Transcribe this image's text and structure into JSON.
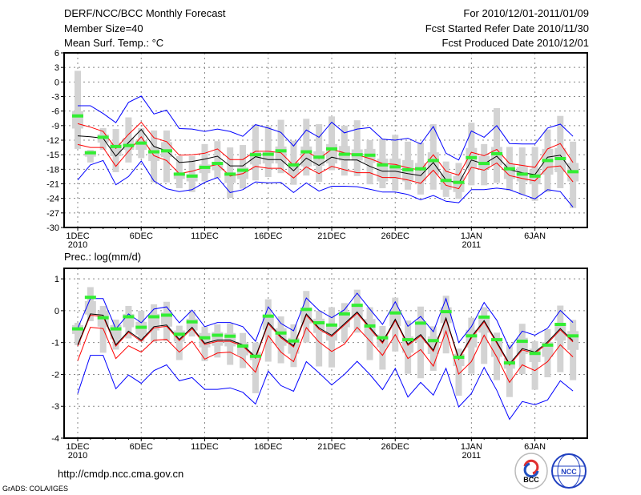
{
  "header": {
    "title": "DERF/NCC/BCC Monthly Forecast",
    "member_size": "Member Size=40",
    "variable": "Mean Surf. Temp.: °C",
    "period": "For 2010/12/01-2011/01/09",
    "started": "Fcst Started Refer Date 2010/11/30",
    "produced": "Fcst Produced Date 2010/12/01"
  },
  "footer": {
    "url": "http://cmdp.ncc.cma.gov.cn",
    "credit": "GrADS: COLA/IGES",
    "logo_bcc": "BCC",
    "logo_ncc": "NCC"
  },
  "colors": {
    "ensemble_spread": "#0000ff",
    "stddev": "#ff0000",
    "mean": "#000000",
    "observed": "#33ee33",
    "box": "#d3d3d3",
    "grid": "#888888"
  },
  "chart_data": [
    {
      "type": "box+line",
      "title": "Mean Surf. Temp.: °C",
      "ylabel": "°C",
      "ylim": [
        -30,
        6
      ],
      "yticks": [
        6,
        3,
        0,
        -3,
        -6,
        -9,
        -12,
        -15,
        -18,
        -21,
        -24,
        -27,
        -30
      ],
      "xticks": [
        {
          "day": 1,
          "label": "1DEC",
          "sub": "2010"
        },
        {
          "day": 6,
          "label": "6DEC"
        },
        {
          "day": 11,
          "label": "11DEC"
        },
        {
          "day": 16,
          "label": "16DEC"
        },
        {
          "day": 21,
          "label": "21DEC"
        },
        {
          "day": 26,
          "label": "26DEC"
        },
        {
          "day": 32,
          "label": "1JAN",
          "sub": "2011"
        },
        {
          "day": 37,
          "label": "6JAN"
        }
      ],
      "grid": true,
      "days": 40,
      "mean": [
        -11.1,
        -11.3,
        -11.6,
        -15.3,
        -12.5,
        -9.8,
        -13.3,
        -14.2,
        -16.6,
        -16.4,
        -15.9,
        -15.3,
        -17.3,
        -17.3,
        -15.4,
        -16,
        -16,
        -18.3,
        -15.7,
        -17.2,
        -15.5,
        -16.1,
        -16.1,
        -17.4,
        -18.4,
        -18.4,
        -18.9,
        -19.3,
        -16.6,
        -20.2,
        -20.9,
        -16.1,
        -16.9,
        -15.3,
        -18.1,
        -18.7,
        -19.1,
        -15.5,
        -15.1,
        -18.7
      ],
      "red_upper": [
        -8.6,
        -9.3,
        -10.2,
        -13.7,
        -10.8,
        -8.3,
        -11.5,
        -12.3,
        -15.1,
        -15,
        -14.7,
        -13.8,
        -16,
        -16,
        -14.3,
        -14.3,
        -14.6,
        -17.2,
        -14.3,
        -15.8,
        -13.9,
        -14.6,
        -15,
        -15.8,
        -16.8,
        -17,
        -17.7,
        -18.2,
        -15,
        -18.4,
        -19.2,
        -14.5,
        -15.2,
        -13.9,
        -16.8,
        -17.2,
        -17.6,
        -13.8,
        -12.7,
        -16.6
      ],
      "red_lower": [
        -12.9,
        -13.5,
        -13.5,
        -17.4,
        -14.3,
        -11.3,
        -15.2,
        -16.2,
        -18.9,
        -18.4,
        -17.6,
        -17,
        -19.4,
        -18.9,
        -17.4,
        -17.8,
        -17.8,
        -19.8,
        -17.5,
        -18.9,
        -17.4,
        -18.1,
        -18.7,
        -18.7,
        -19.7,
        -19.7,
        -20.2,
        -20.9,
        -18.2,
        -21.3,
        -22,
        -17.6,
        -18.2,
        -16.7,
        -19.3,
        -19.9,
        -20.4,
        -17.6,
        -17.3,
        -20.6
      ],
      "blue_upper": [
        -4.9,
        -4.9,
        -6.5,
        -8.4,
        -4.2,
        -2.9,
        -6.6,
        -5.8,
        -9.6,
        -9.7,
        -10.2,
        -9.7,
        -10.2,
        -11.2,
        -8.8,
        -9.5,
        -10.4,
        -13.2,
        -9.9,
        -11.4,
        -8.3,
        -10.5,
        -9.7,
        -9.4,
        -11.8,
        -12,
        -11.6,
        -12.8,
        -9.2,
        -14.7,
        -16.1,
        -10.1,
        -11.4,
        -9,
        -12.7,
        -12.8,
        -12.8,
        -9.5,
        -8.7,
        -11.2
      ],
      "blue_lower": [
        -20.2,
        -17.1,
        -16.2,
        -21.2,
        -19.5,
        -16.3,
        -20.4,
        -22,
        -22.6,
        -22.2,
        -20.7,
        -19.7,
        -22.8,
        -22.2,
        -20.6,
        -20.8,
        -20.7,
        -22.8,
        -20.8,
        -22.5,
        -21.5,
        -21.5,
        -21.6,
        -22.1,
        -22.7,
        -22.7,
        -23.2,
        -24.3,
        -23.4,
        -24.6,
        -24.9,
        -22.2,
        -22.2,
        -21.9,
        -22.2,
        -23.2,
        -24.1,
        -22.2,
        -22.6,
        -25.8
      ],
      "whisker_low": [
        -13.8,
        -16.6,
        -14,
        -18.6,
        -16.6,
        -15.7,
        -20.7,
        -20.7,
        -21.9,
        -22.7,
        -20.5,
        -19.8,
        -23.9,
        -22,
        -20.3,
        -19.6,
        -18.8,
        -21.2,
        -19.3,
        -20.6,
        -18.2,
        -19.3,
        -19.4,
        -21.1,
        -21.9,
        -22.4,
        -22.2,
        -23.2,
        -22.2,
        -23.7,
        -24.1,
        -21.3,
        -21.3,
        -20.8,
        -22.4,
        -23.3,
        -24.5,
        -22.7,
        -21.9,
        -26
      ],
      "whisker_high": [
        2.3,
        -14,
        -9.5,
        -9.7,
        -7.3,
        -9.5,
        -10,
        -10,
        -15.3,
        -15.3,
        -12.8,
        -12.2,
        -13.5,
        -13,
        -8.8,
        -9.2,
        -7.8,
        -12.1,
        -7.6,
        -8.7,
        -7.1,
        -9,
        -7.9,
        -12,
        -11.7,
        -10.9,
        -12.3,
        -12.5,
        -8.7,
        -16.4,
        -16.7,
        -8.4,
        -12.8,
        -5.4,
        -13.4,
        -13.5,
        -13.4,
        -9.8,
        -7,
        -12.3
      ],
      "box_low": [
        -9.6,
        -15.4,
        -12.5,
        -15.3,
        -14,
        -14,
        -16.3,
        -15.5,
        -20,
        -20.5,
        -18.8,
        -18.2,
        -20.8,
        -20,
        -17,
        -16.8,
        -16.8,
        -19,
        -17.4,
        -17.3,
        -16.8,
        -16.2,
        -16.2,
        -16.7,
        -20.5,
        -20,
        -20.5,
        -20.5,
        -19.1,
        -22.2,
        -22.7,
        -17.8,
        -18,
        -17.2,
        -20,
        -20.5,
        -21.1,
        -19.1,
        -18.6,
        -20.5
      ],
      "box_high": [
        -6,
        -14.2,
        -10.8,
        -12.5,
        -11.5,
        -12,
        -13.5,
        -12.4,
        -18.7,
        -19,
        -17,
        -16.5,
        -18.8,
        -17.6,
        -14.5,
        -14.5,
        -13.3,
        -16.5,
        -13.3,
        -14.3,
        -12.8,
        -13.2,
        -13.9,
        -13.8,
        -15.8,
        -15.8,
        -16.1,
        -16.7,
        -14.5,
        -18.9,
        -19.4,
        -13.6,
        -15.3,
        -13.4,
        -16.9,
        -17.5,
        -18,
        -13.8,
        -13.6,
        -16.7
      ],
      "observed": [
        -7,
        -14.6,
        -11.4,
        -13.3,
        -13.1,
        -12.6,
        -14.4,
        -14.2,
        -19,
        -19.4,
        -17.6,
        -16.8,
        -19,
        -18.2,
        -15,
        -14.9,
        -14.2,
        -17.1,
        -14.4,
        -15.5,
        -13.8,
        -14.9,
        -15,
        -15.1,
        -17.1,
        -17.5,
        -18.1,
        -17.9,
        -16.2,
        -20.3,
        -20.7,
        -15.6,
        -16.8,
        -14.8,
        -17.9,
        -19,
        -19.4,
        -16.2,
        -15.8,
        -18.5
      ]
    },
    {
      "type": "box+line",
      "title": "Prec.: log(mm/d)",
      "ylabel": "log(mm/d)",
      "ylim": [
        -4,
        1.33
      ],
      "yticks": [
        1,
        0,
        -1,
        -2,
        -3,
        -4
      ],
      "xticks": [
        {
          "day": 1,
          "label": "1DEC",
          "sub": "2010"
        },
        {
          "day": 6,
          "label": "6DEC"
        },
        {
          "day": 11,
          "label": "11DEC"
        },
        {
          "day": 16,
          "label": "16DEC"
        },
        {
          "day": 21,
          "label": "21DEC"
        },
        {
          "day": 26,
          "label": "26DEC"
        },
        {
          "day": 32,
          "label": "1JAN",
          "sub": "2011"
        },
        {
          "day": 37,
          "label": "6JAN"
        }
      ],
      "grid": true,
      "days": 40,
      "mean": [
        -1.07,
        -0.1,
        -0.14,
        -1.07,
        -0.64,
        -0.92,
        -0.5,
        -0.45,
        -0.9,
        -0.52,
        -1.02,
        -0.92,
        -0.92,
        -1.07,
        -1.45,
        -0.37,
        -0.81,
        -1.1,
        -0.1,
        -0.54,
        -0.77,
        -0.41,
        -0.04,
        -0.52,
        -0.98,
        -0.27,
        -1.05,
        -0.75,
        -1.24,
        -0.23,
        -1.49,
        -0.82,
        -0.31,
        -0.98,
        -1.67,
        -1.19,
        -1.3,
        -0.98,
        -0.56,
        -0.94
      ],
      "red_upper": [
        -1.11,
        -0.14,
        -0.18,
        -1.11,
        -0.68,
        -0.96,
        -0.54,
        -0.49,
        -0.94,
        -0.56,
        -1.06,
        -0.96,
        -0.96,
        -1.11,
        -1.49,
        -0.41,
        -0.85,
        -1.14,
        -0.14,
        -0.58,
        -0.81,
        -0.45,
        -0.08,
        -0.56,
        -1.02,
        -0.31,
        -1.09,
        -0.79,
        -1.28,
        -0.27,
        -1.53,
        -0.86,
        -0.35,
        -1.02,
        -1.71,
        -1.23,
        -1.34,
        -1.02,
        -0.6,
        -0.98
      ],
      "red_lower": [
        -1.57,
        -0.52,
        -0.56,
        -1.5,
        -1.1,
        -1.3,
        -0.93,
        -0.9,
        -1.3,
        -0.96,
        -1.52,
        -1.33,
        -1.3,
        -1.5,
        -1.93,
        -0.78,
        -1.3,
        -1.6,
        -0.53,
        -0.98,
        -1.28,
        -1.05,
        -0.52,
        -0.95,
        -1.4,
        -0.75,
        -1.5,
        -1.22,
        -1.74,
        -0.64,
        -1.99,
        -1.6,
        -0.77,
        -1.45,
        -2.25,
        -1.7,
        -1.88,
        -1.6,
        -1.07,
        -1.45
      ],
      "blue_upper": [
        -0.55,
        0.38,
        0.38,
        -0.57,
        -0.1,
        -0.38,
        0.05,
        0.12,
        -0.38,
        0.02,
        -0.5,
        -0.37,
        -0.37,
        -0.5,
        -0.96,
        0.12,
        -0.4,
        -0.63,
        0.4,
        0.01,
        -0.22,
        0.03,
        0.55,
        0.05,
        -0.43,
        0.28,
        -0.49,
        -0.18,
        -0.66,
        0.38,
        -1,
        -0.5,
        0.26,
        -0.3,
        -1.19,
        -0.64,
        -0.77,
        -0.55,
        0.01,
        -0.37
      ],
      "blue_lower": [
        -2.6,
        -1.4,
        -1.4,
        -2.45,
        -2.02,
        -2.28,
        -1.88,
        -1.7,
        -2.2,
        -2.1,
        -2.47,
        -2.47,
        -2.42,
        -2.56,
        -2.93,
        -1.9,
        -2.35,
        -2.53,
        -1.6,
        -1.95,
        -2.33,
        -2,
        -1.59,
        -2,
        -2.48,
        -1.81,
        -2.71,
        -2.25,
        -2.65,
        -1.81,
        -3.02,
        -2.6,
        -1.78,
        -2.5,
        -3.41,
        -2.85,
        -2.95,
        -2.8,
        -2.2,
        -2.52
      ],
      "whisker_low": [
        -1.08,
        -0.33,
        -1.32,
        -1.22,
        -0.87,
        -0.97,
        -0.98,
        -0.95,
        -1.55,
        -0.81,
        -1.58,
        -1.47,
        -1.7,
        -1.8,
        -2.59,
        -1.6,
        -1.65,
        -1.77,
        -1,
        -1.75,
        -1.78,
        -0.98,
        -0.69,
        -1.55,
        -1.85,
        -1.28,
        -1.98,
        -2.12,
        -1.89,
        -1.34,
        -2.67,
        -1.98,
        -1.67,
        -2.18,
        -2.71,
        -1.99,
        -2.48,
        -2.09,
        -1.93,
        -2.18
      ],
      "whisker_high": [
        -0.38,
        0.74,
        0.15,
        -0.28,
        0.15,
        0,
        0.2,
        0.28,
        -0.47,
        -0.03,
        -0.5,
        -0.43,
        -0.4,
        -0.7,
        -1,
        0.36,
        -0.18,
        -0.43,
        0.62,
        0,
        0.11,
        0.24,
        0.66,
        0.11,
        -0.48,
        0.41,
        -0.31,
        0.13,
        -0.49,
        0.47,
        -1.19,
        -0.22,
        0.11,
        -0.69,
        -1.07,
        -0.41,
        -0.96,
        -0.58,
        0.16,
        -0.29
      ],
      "box_low": [
        -0.73,
        -0.12,
        -0.5,
        -0.9,
        -0.52,
        -0.75,
        -0.62,
        -0.5,
        -0.97,
        -0.62,
        -1.15,
        -1.1,
        -1.12,
        -1.4,
        -1.55,
        -0.6,
        -1.1,
        -1.35,
        -0.4,
        -0.7,
        -0.94,
        -0.52,
        -0.22,
        -0.81,
        -1.15,
        -0.48,
        -1.32,
        -0.98,
        -1.36,
        -0.39,
        -1.74,
        -1.15,
        -0.69,
        -1.45,
        -1.82,
        -1.36,
        -1.61,
        -1.45,
        -0.94,
        -1.23
      ],
      "box_high": [
        -0.45,
        0.3,
        0,
        -0.45,
        -0.1,
        -0.35,
        -0.1,
        -0.05,
        -0.62,
        -0.25,
        -0.7,
        -0.67,
        -0.7,
        -1,
        -1.3,
        -0.15,
        -0.55,
        -0.85,
        0.1,
        -0.25,
        -0.43,
        -0.05,
        0.2,
        -0.26,
        -0.75,
        0.03,
        -0.81,
        -0.39,
        -0.81,
        0.11,
        -1.36,
        -0.6,
        -0.18,
        -0.85,
        -1.49,
        -0.85,
        -1.19,
        -0.98,
        -0.43,
        -0.64
      ],
      "observed": [
        -0.57,
        0.42,
        -0.22,
        -0.57,
        -0.19,
        -0.52,
        -0.19,
        -0.14,
        -0.74,
        -0.35,
        -0.85,
        -0.77,
        -0.8,
        -1.11,
        -1.43,
        -0.17,
        -0.7,
        -0.95,
        0.04,
        -0.38,
        -0.45,
        -0.1,
        0.17,
        -0.48,
        -0.85,
        -0.07,
        -0.91,
        -0.39,
        -0.94,
        -0.03,
        -1.46,
        -0.79,
        -0.2,
        -0.91,
        -1.64,
        -0.96,
        -1.34,
        -1.08,
        -0.43,
        -0.79
      ]
    }
  ]
}
